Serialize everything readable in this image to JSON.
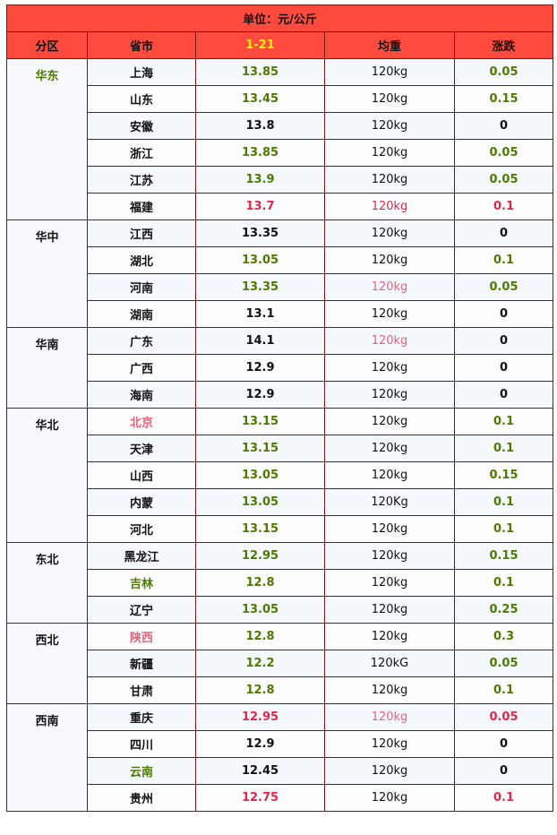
{
  "unit_label": "单位：元/公斤",
  "headers": {
    "region": "分区",
    "province": "省市",
    "date": "1-21",
    "weight": "均重",
    "change": "涨跌"
  },
  "colors": {
    "header_bg": "#ff4b3e",
    "date_header": "#fff200",
    "green": "#4d7a00",
    "red": "#e0284a",
    "border": "#7a1414"
  },
  "regions": [
    {
      "name": "华东",
      "color": "green",
      "rows": [
        {
          "province": "上海",
          "price": "13.85",
          "weight": "120kg",
          "change": "0.05",
          "pc": "green",
          "wc": "",
          "cc": "green"
        },
        {
          "province": "山东",
          "price": "13.45",
          "weight": "120kg",
          "change": "0.15",
          "pc": "green",
          "wc": "",
          "cc": "green"
        },
        {
          "province": "安徽",
          "price": "13.8",
          "weight": "120kg",
          "change": "0",
          "pc": "",
          "wc": "",
          "cc": ""
        },
        {
          "province": "浙江",
          "price": "13.85",
          "weight": "120kg",
          "change": "0.05",
          "pc": "green",
          "wc": "",
          "cc": "green"
        },
        {
          "province": "江苏",
          "price": "13.9",
          "weight": "120kg",
          "change": "0.05",
          "pc": "green",
          "wc": "",
          "cc": "green"
        },
        {
          "province": "福建",
          "price": "13.7",
          "weight": "120kg",
          "change": "0.1",
          "pc": "red",
          "wc": "red",
          "cc": "red"
        }
      ]
    },
    {
      "name": "华中",
      "color": "",
      "rows": [
        {
          "province": "江西",
          "price": "13.35",
          "weight": "120kg",
          "change": "0",
          "pc": "",
          "wc": "",
          "cc": ""
        },
        {
          "province": "湖北",
          "price": "13.05",
          "weight": "120kg",
          "change": "0.1",
          "pc": "green",
          "wc": "",
          "cc": "green"
        },
        {
          "province": "河南",
          "price": "13.35",
          "weight": "120kg",
          "change": "0.05",
          "pc": "green",
          "wc": "lightred",
          "cc": "green"
        },
        {
          "province": "湖南",
          "price": "13.1",
          "weight": "120kg",
          "change": "0",
          "pc": "",
          "wc": "",
          "cc": ""
        }
      ]
    },
    {
      "name": "华南",
      "color": "",
      "rows": [
        {
          "province": "广东",
          "price": "14.1",
          "weight": "120kg",
          "change": "0",
          "pc": "",
          "wc": "lightred",
          "cc": ""
        },
        {
          "province": "广西",
          "price": "12.9",
          "weight": "120kg",
          "change": "0",
          "pc": "",
          "wc": "",
          "cc": ""
        },
        {
          "province": "海南",
          "price": "12.9",
          "weight": "120kg",
          "change": "0",
          "pc": "",
          "wc": "",
          "cc": ""
        }
      ]
    },
    {
      "name": "华北",
      "color": "",
      "rows": [
        {
          "province": "北京",
          "price": "13.15",
          "weight": "120kg",
          "change": "0.1",
          "pc": "green",
          "wc": "",
          "cc": "green",
          "nc": "lightred"
        },
        {
          "province": "天津",
          "price": "13.15",
          "weight": "120kg",
          "change": "0.1",
          "pc": "green",
          "wc": "",
          "cc": "green"
        },
        {
          "province": "山西",
          "price": "13.05",
          "weight": "120kg",
          "change": "0.15",
          "pc": "green",
          "wc": "",
          "cc": "green"
        },
        {
          "province": "内蒙",
          "price": "13.05",
          "weight": "120Kg",
          "change": "0.1",
          "pc": "green",
          "wc": "",
          "cc": "green"
        },
        {
          "province": "河北",
          "price": "13.15",
          "weight": "120kg",
          "change": "0.1",
          "pc": "green",
          "wc": "",
          "cc": "green"
        }
      ]
    },
    {
      "name": "东北",
      "color": "",
      "rows": [
        {
          "province": "黑龙江",
          "price": "12.95",
          "weight": "120kg",
          "change": "0.15",
          "pc": "green",
          "wc": "",
          "cc": "green"
        },
        {
          "province": "吉林",
          "price": "12.8",
          "weight": "120kg",
          "change": "0.1",
          "pc": "green",
          "wc": "",
          "cc": "green",
          "nc": "green"
        },
        {
          "province": "辽宁",
          "price": "13.05",
          "weight": "120kg",
          "change": "0.25",
          "pc": "green",
          "wc": "",
          "cc": "green"
        }
      ]
    },
    {
      "name": "西北",
      "color": "",
      "rows": [
        {
          "province": "陕西",
          "price": "12.8",
          "weight": "120kg",
          "change": "0.3",
          "pc": "green",
          "wc": "",
          "cc": "green",
          "nc": "lightred"
        },
        {
          "province": "新疆",
          "price": "12.2",
          "weight": "120kG",
          "change": "0.05",
          "pc": "green",
          "wc": "",
          "cc": "green"
        },
        {
          "province": "甘肃",
          "price": "12.8",
          "weight": "120kg",
          "change": "0.1",
          "pc": "green",
          "wc": "",
          "cc": "green"
        }
      ]
    },
    {
      "name": "西南",
      "color": "",
      "rows": [
        {
          "province": "重庆",
          "price": "12.95",
          "weight": "120kg",
          "change": "0.05",
          "pc": "red",
          "wc": "lightred",
          "cc": "red"
        },
        {
          "province": "四川",
          "price": "12.9",
          "weight": "120kg",
          "change": "0",
          "pc": "",
          "wc": "",
          "cc": ""
        },
        {
          "province": "云南",
          "price": "12.45",
          "weight": "120kg",
          "change": "0",
          "pc": "",
          "wc": "",
          "cc": "",
          "nc": "green"
        },
        {
          "province": "贵州",
          "price": "12.75",
          "weight": "120kg",
          "change": "0.1",
          "pc": "red",
          "wc": "",
          "cc": "red"
        }
      ]
    }
  ]
}
